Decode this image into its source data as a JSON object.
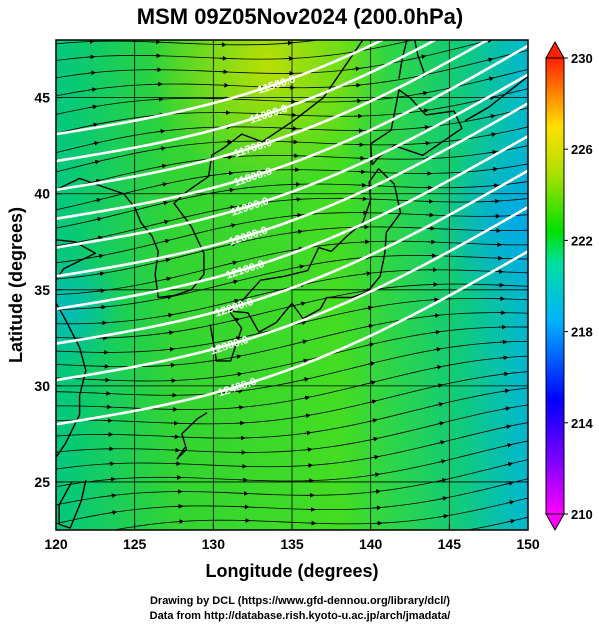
{
  "title": "MSM 09Z05Nov2024 (200.0hPa)",
  "x_axis": {
    "label": "Longitude (degrees)",
    "range": [
      120,
      150
    ],
    "ticks": [
      120,
      125,
      130,
      135,
      140,
      145,
      150
    ]
  },
  "y_axis": {
    "label": "Latitude  (degrees)",
    "range": [
      22.5,
      48
    ],
    "ticks": [
      25,
      30,
      35,
      40,
      45
    ]
  },
  "colorbar": {
    "range": [
      210,
      230
    ],
    "ticks": [
      210,
      214,
      218,
      222,
      226,
      230
    ]
  },
  "contours": [
    {
      "label": "11500.0",
      "lat": 47.3,
      "label_lon": 134
    },
    {
      "label": "11600.0",
      "lat": 45.9,
      "label_lon": 133.5
    },
    {
      "label": "11700.0",
      "lat": 44.4,
      "label_lon": 132.5
    },
    {
      "label": "11800.0",
      "lat": 42.9,
      "label_lon": 132.5
    },
    {
      "label": "11900.0",
      "lat": 41.4,
      "label_lon": 132.3
    },
    {
      "label": "12000.0",
      "lat": 39.9,
      "label_lon": 132.2
    },
    {
      "label": "12100.0",
      "lat": 38.2,
      "label_lon": 132
    },
    {
      "label": "12200.0",
      "lat": 36.4,
      "label_lon": 131.3
    },
    {
      "label": "12300.0",
      "lat": 34.5,
      "label_lon": 131.0
    },
    {
      "label": "12400.0",
      "lat": 32.2,
      "label_lon": 131.5
    }
  ],
  "footer": {
    "line1": "Drawing by DCL (https://www.gfd-dennou.org/library/dcl/)",
    "line2": "Data from http://database.rish.kyoto-u.ac.jp/arch/jmadata/"
  }
}
